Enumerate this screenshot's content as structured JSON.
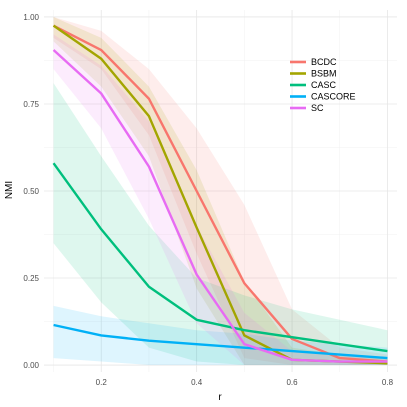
{
  "chart_data": {
    "type": "line",
    "xlabel": "r",
    "ylabel": "NMI",
    "xlim": [
      0.08,
      0.82
    ],
    "ylim": [
      -0.02,
      1.02
    ],
    "x_ticks": [
      0.2,
      0.4,
      0.6,
      0.8
    ],
    "y_ticks": [
      0.0,
      0.25,
      0.5,
      0.75,
      1.0
    ],
    "x_tick_labels": [
      "0.2",
      "0.4",
      "0.6",
      "0.8"
    ],
    "y_tick_labels": [
      "0.00",
      "0.25",
      "0.50",
      "0.75",
      "1.00"
    ],
    "grid": true,
    "legend_position": "top-right",
    "x": [
      0.1,
      0.2,
      0.3,
      0.4,
      0.5,
      0.6,
      0.7,
      0.8
    ],
    "series": [
      {
        "name": "BCDC",
        "color": "#F8766D",
        "values": [
          0.975,
          0.905,
          0.765,
          0.5,
          0.235,
          0.075,
          0.02,
          0.01
        ],
        "lower": [
          0.94,
          0.85,
          0.66,
          0.32,
          0.02,
          0.0,
          0.0,
          0.0
        ],
        "upper": [
          1.0,
          0.96,
          0.85,
          0.68,
          0.46,
          0.16,
          0.05,
          0.03
        ]
      },
      {
        "name": "BSBM",
        "color": "#A3A500",
        "values": [
          0.975,
          0.88,
          0.715,
          0.395,
          0.085,
          0.015,
          0.01,
          0.005
        ],
        "lower": [
          0.93,
          0.8,
          0.6,
          0.22,
          0.0,
          0.0,
          0.0,
          0.0
        ],
        "upper": [
          1.0,
          0.94,
          0.8,
          0.56,
          0.24,
          0.05,
          0.03,
          0.02
        ]
      },
      {
        "name": "CASC",
        "color": "#00BF7D",
        "values": [
          0.58,
          0.39,
          0.225,
          0.13,
          0.1,
          0.08,
          0.06,
          0.04
        ],
        "lower": [
          0.35,
          0.18,
          0.05,
          0.01,
          0.0,
          0.0,
          0.0,
          0.0
        ],
        "upper": [
          0.81,
          0.6,
          0.4,
          0.25,
          0.2,
          0.16,
          0.13,
          0.1
        ]
      },
      {
        "name": "CASCORE",
        "color": "#00B0F6",
        "values": [
          0.115,
          0.085,
          0.07,
          0.06,
          0.05,
          0.04,
          0.03,
          0.02
        ],
        "lower": [
          0.02,
          0.01,
          0.0,
          0.0,
          0.0,
          0.0,
          0.0,
          0.0
        ],
        "upper": [
          0.17,
          0.14,
          0.12,
          0.1,
          0.09,
          0.07,
          0.06,
          0.05
        ]
      },
      {
        "name": "SC",
        "color": "#E76BF3",
        "values": [
          0.905,
          0.78,
          0.57,
          0.26,
          0.06,
          0.015,
          0.01,
          0.01
        ],
        "lower": [
          0.85,
          0.68,
          0.42,
          0.12,
          0.0,
          0.0,
          0.0,
          0.0
        ],
        "upper": [
          0.95,
          0.86,
          0.7,
          0.4,
          0.15,
          0.04,
          0.03,
          0.02
        ]
      }
    ]
  }
}
